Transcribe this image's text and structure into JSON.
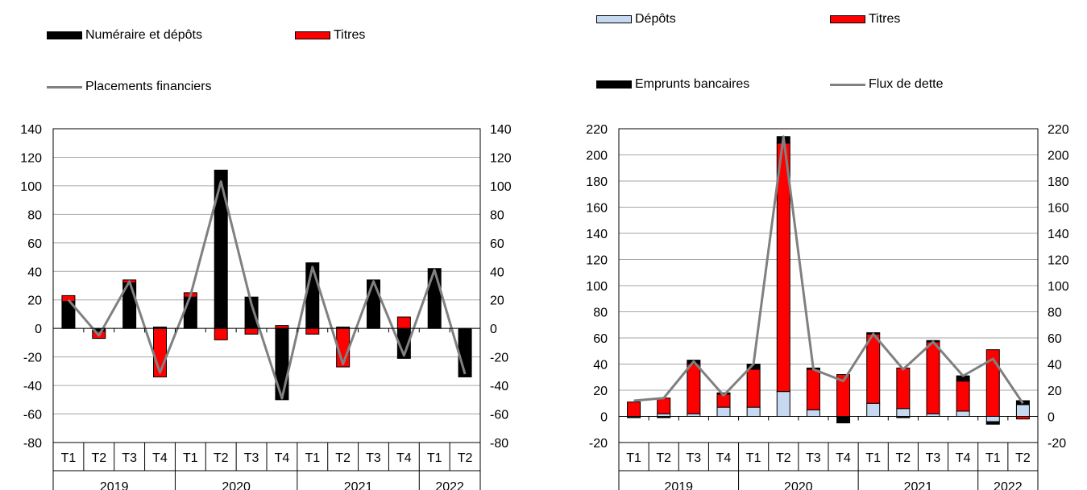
{
  "colors": {
    "black": "#000000",
    "red": "#ff0000",
    "light_blue": "#c6d9f1",
    "line": "#808080"
  },
  "chart_data": [
    {
      "type": "bar",
      "stacked": true,
      "title": "",
      "categories": [
        "T1",
        "T2",
        "T3",
        "T4",
        "T1",
        "T2",
        "T3",
        "T4",
        "T1",
        "T2",
        "T3",
        "T4",
        "T1",
        "T2"
      ],
      "groups": [
        {
          "label": "2019",
          "count": 4
        },
        {
          "label": "2020",
          "count": 4
        },
        {
          "label": "2021",
          "count": 4
        },
        {
          "label": "2022",
          "count": 2
        }
      ],
      "ylim": [
        -80,
        140
      ],
      "yticks": [
        -80,
        -60,
        -40,
        -20,
        0,
        20,
        40,
        60,
        80,
        100,
        120,
        140
      ],
      "y2ticks": [
        -80,
        -60,
        -40,
        -20,
        0,
        20,
        40,
        60,
        80,
        100,
        120,
        140
      ],
      "grid": true,
      "legend": {
        "position": "top-left"
      },
      "series": [
        {
          "name": "Numéraire et dépôts",
          "kind": "bar",
          "color": "#000000",
          "values": [
            19,
            -2,
            32,
            1,
            22,
            111,
            22,
            -50,
            46,
            1,
            34,
            -21,
            42,
            -34
          ]
        },
        {
          "name": "Titres",
          "kind": "bar",
          "color": "#ff0000",
          "values": [
            4,
            -5,
            2,
            -34,
            3,
            -8,
            -4,
            2,
            -4,
            -27,
            0,
            8,
            0,
            0
          ]
        },
        {
          "name": "Placements financiers",
          "kind": "line",
          "color": "#808080",
          "values": [
            20,
            -5,
            33,
            -31,
            23,
            103,
            17,
            -49,
            43,
            -25,
            33,
            -19,
            41,
            -32
          ]
        }
      ]
    },
    {
      "type": "bar",
      "stacked": true,
      "title": "",
      "categories": [
        "T1",
        "T2",
        "T3",
        "T4",
        "T1",
        "T2",
        "T3",
        "T4",
        "T1",
        "T2",
        "T3",
        "T4",
        "T1",
        "T2"
      ],
      "groups": [
        {
          "label": "2019",
          "count": 4
        },
        {
          "label": "2020",
          "count": 4
        },
        {
          "label": "2021",
          "count": 4
        },
        {
          "label": "2022",
          "count": 2
        }
      ],
      "ylim": [
        -20,
        220
      ],
      "yticks": [
        -20,
        0,
        20,
        40,
        60,
        80,
        100,
        120,
        140,
        160,
        180,
        200,
        220
      ],
      "y2ticks": [
        -20,
        0,
        20,
        40,
        60,
        80,
        100,
        120,
        140,
        160,
        180,
        200,
        220
      ],
      "grid": true,
      "legend": {
        "position": "top"
      },
      "series": [
        {
          "name": "Dépôts",
          "kind": "bar",
          "color": "#c6d9f1",
          "values": [
            0,
            2,
            2,
            7,
            7,
            19,
            5,
            0,
            10,
            6,
            2,
            4,
            -4,
            9
          ]
        },
        {
          "name": "Titres",
          "kind": "bar",
          "color": "#ff0000",
          "values": [
            11,
            12,
            38,
            10,
            29,
            190,
            31,
            32,
            53,
            31,
            55,
            23,
            51,
            -2
          ]
        },
        {
          "name": "Emprunts bancaires",
          "kind": "bar",
          "color": "#000000",
          "values": [
            -1,
            -1,
            3,
            1,
            4,
            5,
            1,
            -5,
            1,
            -1,
            1,
            4,
            -2,
            3
          ]
        },
        {
          "name": "Flux de dette",
          "kind": "line",
          "color": "#808080",
          "values": [
            12,
            14,
            42,
            16,
            40,
            214,
            36,
            27,
            63,
            36,
            57,
            31,
            44,
            10
          ]
        }
      ]
    }
  ]
}
